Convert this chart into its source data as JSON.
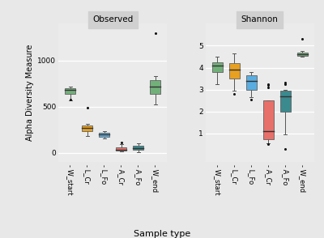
{
  "categories": [
    "W_start",
    "L_Cr",
    "L_Fo",
    "A_Cr",
    "A_Fo",
    "W_end"
  ],
  "panel_titles": [
    "Observed",
    "Shannon"
  ],
  "ylabel": "Alpha Diversity Measure",
  "xlabel": "Sample type",
  "background_color": "#ebebeb",
  "panel_bg": "#ebebeb",
  "grid_color": "white",
  "observed": {
    "W_start": {
      "q1": 640,
      "median": 680,
      "q3": 700,
      "whislo": 570,
      "whishi": 715,
      "fliers": [
        580
      ]
    },
    "L_Cr": {
      "q1": 230,
      "median": 265,
      "q3": 295,
      "whislo": 180,
      "whishi": 310,
      "fliers": [
        490
      ]
    },
    "L_Fo": {
      "q1": 170,
      "median": 195,
      "q3": 215,
      "whislo": 155,
      "whishi": 230,
      "fliers": []
    },
    "A_Cr": {
      "q1": 20,
      "median": 35,
      "q3": 55,
      "whislo": 10,
      "whishi": 90,
      "fliers": [
        110
      ]
    },
    "A_Fo": {
      "q1": 28,
      "median": 52,
      "q3": 78,
      "whislo": 8,
      "whishi": 105,
      "fliers": []
    },
    "W_end": {
      "q1": 640,
      "median": 720,
      "q3": 790,
      "whislo": 520,
      "whishi": 835,
      "fliers": [
        1300
      ]
    }
  },
  "shannon": {
    "W_start": {
      "q1": 3.8,
      "median": 4.1,
      "q3": 4.25,
      "whislo": 3.25,
      "whishi": 4.5,
      "fliers": []
    },
    "L_Cr": {
      "q1": 3.5,
      "median": 3.9,
      "q3": 4.2,
      "whislo": 2.95,
      "whishi": 4.65,
      "fliers": [
        2.8
      ]
    },
    "L_Fo": {
      "q1": 3.0,
      "median": 3.4,
      "q3": 3.65,
      "whislo": 2.65,
      "whishi": 3.8,
      "fliers": [
        2.55
      ]
    },
    "A_Cr": {
      "q1": 0.75,
      "median": 1.1,
      "q3": 2.5,
      "whislo": 0.55,
      "whishi": 2.5,
      "fliers": [
        0.5,
        3.1,
        3.2,
        3.25
      ]
    },
    "A_Fo": {
      "q1": 2.0,
      "median": 2.7,
      "q3": 2.95,
      "whislo": 0.95,
      "whishi": 3.0,
      "fliers": [
        0.3,
        3.25,
        3.3
      ]
    },
    "W_end": {
      "q1": 4.55,
      "median": 4.62,
      "q3": 4.7,
      "whislo": 4.5,
      "whishi": 4.75,
      "fliers": [
        5.3
      ]
    }
  },
  "colors": {
    "W_start": "#72b07a",
    "L_Cr": "#e8a020",
    "L_Fo": "#5aade0",
    "A_Cr": "#e8706a",
    "A_Fo": "#3a8a8e",
    "W_end": "#72b07a"
  },
  "observed_ylim": [
    -100,
    1400
  ],
  "observed_yticks": [
    0,
    500,
    1000
  ],
  "shannon_ylim": [
    -0.3,
    6.0
  ],
  "shannon_yticks": [
    1,
    2,
    3,
    4,
    5
  ]
}
